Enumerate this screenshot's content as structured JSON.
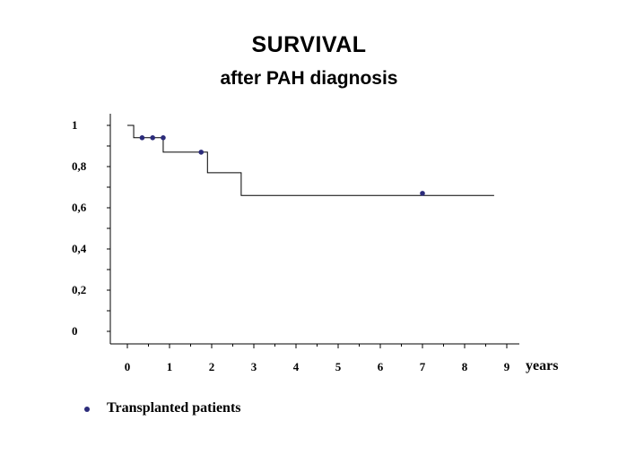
{
  "chart_data": {
    "type": "line",
    "title": "SURVIVAL",
    "subtitle": "after PAH diagnosis",
    "xlabel": "years",
    "ylabel": "",
    "xlim": [
      0,
      9
    ],
    "ylim": [
      0,
      1
    ],
    "x_ticks": [
      0,
      1,
      2,
      3,
      4,
      5,
      6,
      7,
      8,
      9
    ],
    "x_tick_labels": [
      "0",
      "1",
      "2",
      "3",
      "4",
      "5",
      "6",
      "7",
      "8",
      "9"
    ],
    "y_ticks": [
      0,
      0.2,
      0.4,
      0.6,
      0.8,
      1
    ],
    "y_tick_labels": [
      "0",
      "0,2",
      "0,4",
      "0,6",
      "0,8",
      "1"
    ],
    "grid": false,
    "series": [
      {
        "style": "step",
        "color": "#000000",
        "x": [
          0,
          0.15,
          0.85,
          1.9,
          2.7,
          8.7
        ],
        "y": [
          1.0,
          0.94,
          0.87,
          0.77,
          0.66,
          0.66
        ]
      },
      {
        "name": "Transplanted patients",
        "style": "marker",
        "color": "#2b2b7a",
        "x": [
          0.35,
          0.6,
          0.85,
          1.75,
          7.0
        ],
        "y": [
          0.94,
          0.94,
          0.94,
          0.87,
          0.67
        ]
      }
    ],
    "legend_position": "bottom-left"
  }
}
